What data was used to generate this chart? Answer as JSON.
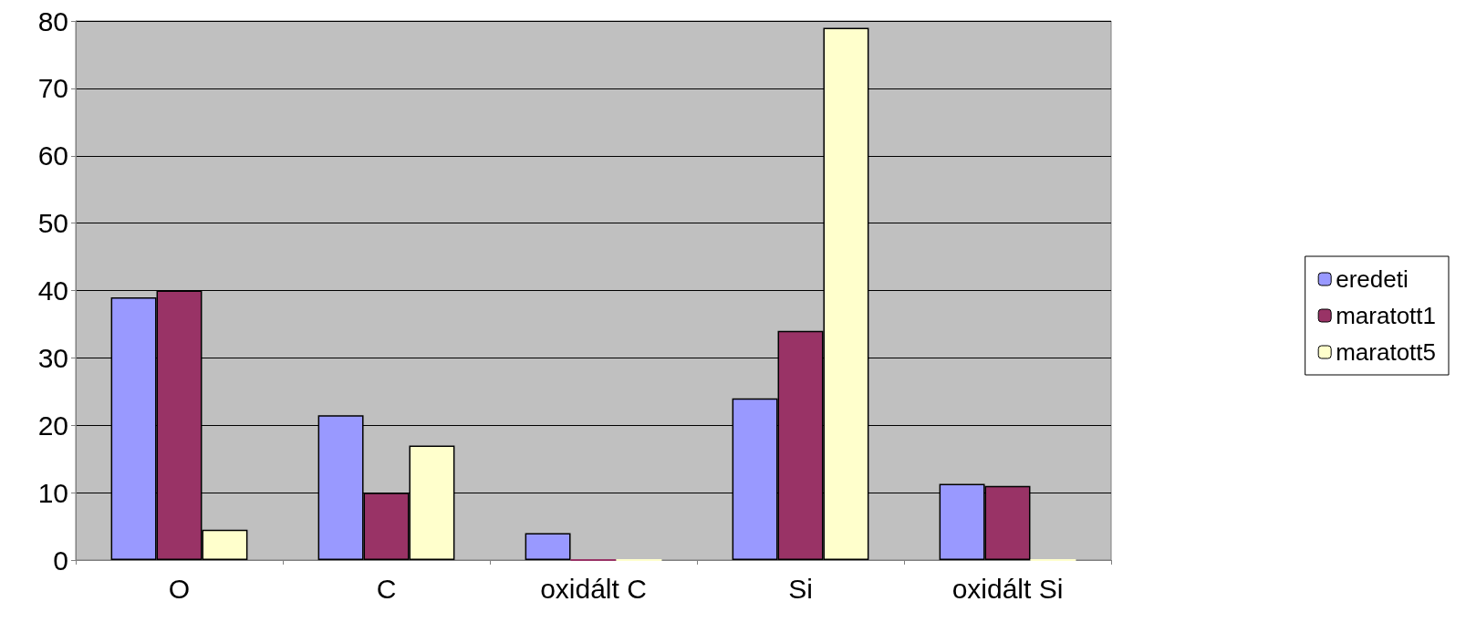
{
  "chart_data": {
    "type": "bar",
    "categories": [
      "O",
      "C",
      "oxidált C",
      "Si",
      "oxidált Si"
    ],
    "series": [
      {
        "name": "eredeti",
        "color": "#9999ff",
        "values": [
          39,
          21.5,
          4,
          24,
          11.3
        ]
      },
      {
        "name": "maratott1",
        "color": "#993366",
        "values": [
          40,
          10,
          0,
          34,
          11
        ]
      },
      {
        "name": "maratott5",
        "color": "#ffffcc",
        "values": [
          4.5,
          17,
          0,
          79,
          0
        ]
      }
    ],
    "ylim": [
      0,
      80
    ],
    "yticks": [
      0,
      10,
      20,
      30,
      40,
      50,
      60,
      70,
      80
    ],
    "grid": "y",
    "legend": "right"
  }
}
